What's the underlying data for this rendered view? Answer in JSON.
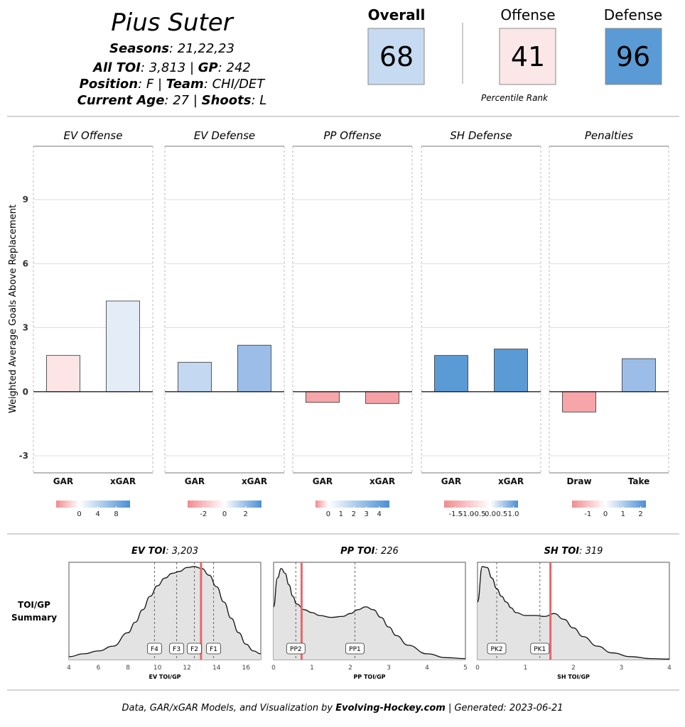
{
  "header": {
    "player_name": "Pius Suter",
    "seasons_label": "Seasons",
    "seasons_value": ": 21,22,23",
    "toi_label": "All TOI",
    "toi_value": ": 3,813 | ",
    "gp_label": "GP",
    "gp_value": ": 242",
    "position_label": "Position",
    "position_value": ": F | ",
    "team_label": "Team",
    "team_value": ": CHI/DET",
    "age_label": "Current Age",
    "age_value": ": 27 | ",
    "shoots_label": "Shoots",
    "shoots_value": ": L"
  },
  "scores": {
    "overall_label": "Overall",
    "overall_value": "68",
    "offense_label": "Offense",
    "offense_value": "41",
    "defense_label": "Defense",
    "defense_value": "96",
    "percentile_label": "Percentile Rank",
    "colors": {
      "overall": "#c6dbf1",
      "offense": "#fbe6e8",
      "defense": "#5b9bd5"
    }
  },
  "chart_data": [
    {
      "type": "bar",
      "title": "Weighted Average Goals Above Replacement",
      "ylabel": "Weighted Average Goals Above Replacement",
      "ylim": [
        -3.8,
        11.5
      ],
      "yticks": [
        -3,
        0,
        3,
        6,
        9
      ],
      "ytick_labels": [
        "-3",
        "0",
        "3",
        "6",
        "9"
      ],
      "panels": [
        {
          "title": "EV Offense",
          "categories": [
            "GAR",
            "xGAR"
          ],
          "values": [
            1.7,
            4.25
          ],
          "colors": [
            "#fde5e6",
            "#e4ecf8"
          ],
          "legend": {
            "min": -5,
            "max": 11,
            "ticks": [
              0,
              4,
              8
            ],
            "labels": [
              "0",
              "4",
              "8"
            ]
          }
        },
        {
          "title": "EV Defense",
          "categories": [
            "GAR",
            "xGAR"
          ],
          "values": [
            1.38,
            2.18
          ],
          "colors": [
            "#c4d8f1",
            "#9bbde8"
          ],
          "legend": {
            "min": -3.5,
            "max": 3.5,
            "ticks": [
              -2,
              0,
              2
            ],
            "labels": [
              "-2",
              "0",
              "2"
            ]
          }
        },
        {
          "title": "PP Offense",
          "categories": [
            "GAR",
            "xGAR"
          ],
          "values": [
            -0.5,
            -0.55
          ],
          "colors": [
            "#f6a5a9",
            "#f5a1a5"
          ],
          "legend": {
            "min": -1,
            "max": 4.8,
            "ticks": [
              0,
              1,
              2,
              3,
              4
            ],
            "labels": [
              "0",
              "1",
              "2",
              "3",
              "4"
            ]
          }
        },
        {
          "title": "SH Defense",
          "categories": [
            "GAR",
            "xGAR"
          ],
          "values": [
            1.7,
            2.0
          ],
          "colors": [
            "#5b9bd5",
            "#5b9bd5"
          ],
          "legend": {
            "min": -2.0,
            "max": 1.2,
            "ticks": [
              -1.5,
              -1.0,
              -0.5,
              0.0,
              0.5,
              1.0
            ],
            "labels": [
              "-1.5",
              "-1.0",
              "-0.5",
              "0.0",
              "0.5",
              "1.0"
            ]
          }
        },
        {
          "title": "Penalties",
          "categories": [
            "Draw",
            "Take"
          ],
          "values": [
            -0.95,
            1.55
          ],
          "colors": [
            "#f6a5a9",
            "#9bbde8"
          ],
          "legend": {
            "min": -1.9,
            "max": 2.3,
            "ticks": [
              -1,
              0,
              1,
              2
            ],
            "labels": [
              "-1",
              "0",
              "1",
              "2"
            ]
          }
        }
      ]
    },
    {
      "type": "area",
      "title": "EV TOI",
      "title_label": "EV TOI",
      "title_value": ": 3,203",
      "xlabel": "EV TOI/GP",
      "xlim": [
        4,
        17
      ],
      "xticks": [
        4,
        6,
        8,
        10,
        12,
        14,
        16
      ],
      "xtick_labels": [
        "4",
        "6",
        "8",
        "10",
        "12",
        "14",
        "16"
      ],
      "density": {
        "x": [
          4,
          5,
          6,
          7,
          8,
          8.5,
          9,
          9.5,
          10,
          10.5,
          11,
          11.5,
          12,
          12.5,
          13,
          13.5,
          14,
          14.5,
          15,
          15.5,
          16,
          16.5,
          17
        ],
        "y": [
          0.03,
          0.06,
          0.09,
          0.14,
          0.28,
          0.39,
          0.52,
          0.66,
          0.77,
          0.85,
          0.9,
          0.92,
          0.96,
          0.97,
          0.95,
          0.88,
          0.76,
          0.6,
          0.43,
          0.28,
          0.16,
          0.09,
          0.06
        ]
      },
      "markers": [
        {
          "label": "F4",
          "x": 9.8
        },
        {
          "label": "F3",
          "x": 11.3
        },
        {
          "label": "F2",
          "x": 12.5
        },
        {
          "label": "F1",
          "x": 13.8
        }
      ],
      "player_value": 12.95
    },
    {
      "type": "area",
      "title": "PP TOI",
      "title_label": "PP TOI",
      "title_value": ": 226",
      "xlabel": "PP TOI/GP",
      "xlim": [
        0,
        5
      ],
      "xticks": [
        0,
        1,
        2,
        3,
        4,
        5
      ],
      "xtick_labels": [
        "0",
        "1",
        "2",
        "3",
        "4",
        "5"
      ],
      "density": {
        "x": [
          0,
          0.1,
          0.2,
          0.3,
          0.4,
          0.5,
          0.6,
          0.8,
          1.0,
          1.2,
          1.5,
          1.8,
          2.0,
          2.2,
          2.4,
          2.6,
          2.8,
          3.0,
          3.2,
          3.5,
          4.0,
          4.5,
          5.0
        ],
        "y": [
          0.55,
          0.85,
          0.95,
          0.9,
          0.78,
          0.66,
          0.58,
          0.52,
          0.49,
          0.46,
          0.44,
          0.45,
          0.48,
          0.52,
          0.55,
          0.52,
          0.44,
          0.34,
          0.25,
          0.15,
          0.06,
          0.02,
          0.01
        ]
      },
      "markers": [
        {
          "label": "PP2",
          "x": 0.58
        },
        {
          "label": "PP1",
          "x": 2.12
        }
      ],
      "player_value": 0.73
    },
    {
      "type": "area",
      "title": "SH TOI",
      "title_label": "SH TOI",
      "title_value": ": 319",
      "xlabel": "SH TOI/GP",
      "xlim": [
        0,
        4
      ],
      "xticks": [
        0,
        1,
        2,
        3,
        4
      ],
      "xtick_labels": [
        "0",
        "1",
        "2",
        "3",
        "4"
      ],
      "density": {
        "x": [
          0,
          0.1,
          0.2,
          0.3,
          0.4,
          0.5,
          0.6,
          0.7,
          0.8,
          1.0,
          1.2,
          1.4,
          1.6,
          1.8,
          2.0,
          2.2,
          2.5,
          2.8,
          3.2,
          3.6,
          4.0
        ],
        "y": [
          0.6,
          0.97,
          0.96,
          0.85,
          0.74,
          0.66,
          0.6,
          0.54,
          0.49,
          0.46,
          0.46,
          0.45,
          0.48,
          0.42,
          0.33,
          0.24,
          0.14,
          0.07,
          0.03,
          0.01,
          0.005
        ]
      },
      "markers": [
        {
          "label": "PK2",
          "x": 0.4
        },
        {
          "label": "PK1",
          "x": 1.3
        }
      ],
      "player_value": 1.52
    }
  ],
  "toi_summary_label_1": "TOI/GP",
  "toi_summary_label_2": "Summary",
  "footer": {
    "prefix": "Data, GAR/xGAR Models, and Visualization by ",
    "site": "Evolving-Hockey.com",
    "suffix": "  |  Generated: 2023-06-21"
  }
}
